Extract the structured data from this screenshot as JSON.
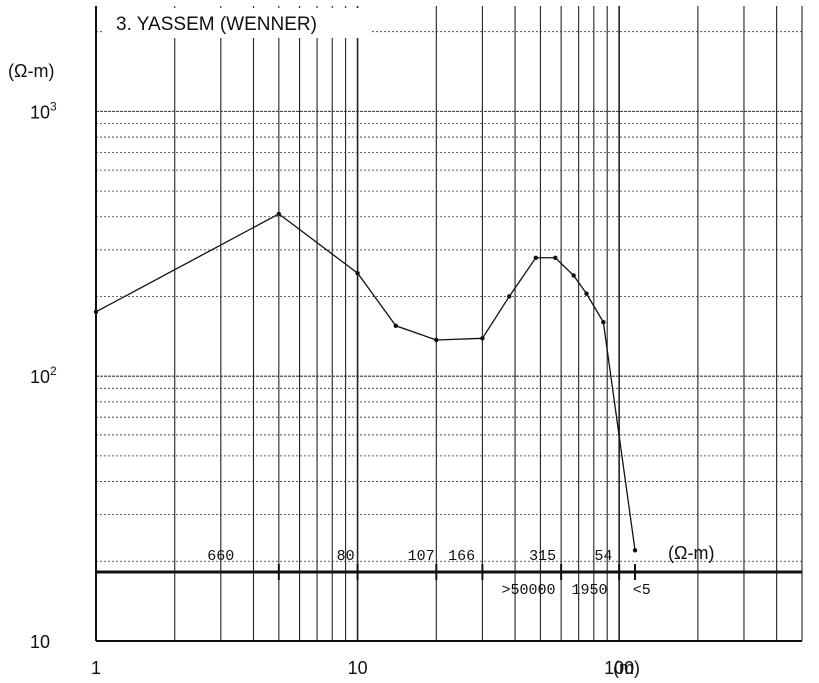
{
  "chart_data": {
    "type": "line",
    "title": "3. YASSEM (WENNER)",
    "ylabel": "(Ω-m)",
    "xlabel": "(m)",
    "xscale": "log",
    "yscale": "log",
    "xlim": [
      1,
      500
    ],
    "ylim": [
      10,
      2500
    ],
    "x_tick_labels": [
      {
        "value": 1,
        "label": "1"
      },
      {
        "value": 10,
        "label": "10"
      },
      {
        "value": 100,
        "label": "100"
      }
    ],
    "y_tick_labels": [
      {
        "value": 10,
        "base": "10",
        "exp": ""
      },
      {
        "value": 100,
        "base": "10",
        "exp": "2"
      },
      {
        "value": 1000,
        "base": "10",
        "exp": "3"
      }
    ],
    "grid": true,
    "series": [
      {
        "x": [
          1,
          5,
          10,
          14,
          20,
          30,
          38,
          48,
          57,
          67,
          75,
          87,
          115
        ],
        "y": [
          175,
          410,
          245,
          155,
          137,
          139,
          200,
          280,
          280,
          240,
          205,
          160,
          22
        ]
      }
    ],
    "interpretation": {
      "depth_boundaries": [
        5,
        10,
        20,
        30,
        60,
        100,
        115
      ],
      "upper_values": [
        {
          "x": 3,
          "label": "660"
        },
        {
          "x": 9,
          "label": "80"
        },
        {
          "x": 17.5,
          "label": "107"
        },
        {
          "x": 25,
          "label": "166"
        },
        {
          "x": 51,
          "label": "315"
        },
        {
          "x": 87,
          "label": "54"
        }
      ],
      "lower_values": [
        {
          "x": 45,
          "label": ">50000"
        },
        {
          "x": 77,
          "label": "1950"
        },
        {
          "x": 122,
          "label": "<5"
        }
      ],
      "unit_label": "(Ω-m)"
    }
  }
}
